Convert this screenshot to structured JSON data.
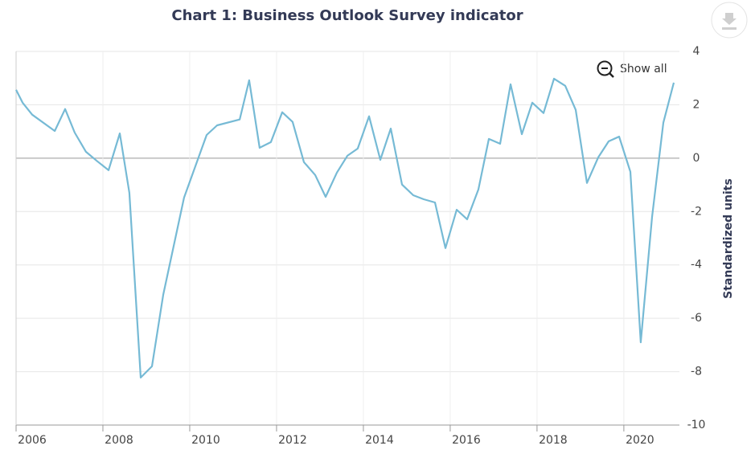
{
  "chart_data": {
    "type": "line",
    "title": "Chart 1: Business Outlook Survey indicator",
    "y_label": "Standardized units",
    "color": "#76bad5",
    "x": [
      2006.0,
      2006.15,
      2006.37,
      2006.89,
      2007.13,
      2007.35,
      2007.61,
      2007.85,
      2008.13,
      2008.39,
      2008.61,
      2008.87,
      2009.13,
      2009.39,
      2009.87,
      2010.39,
      2010.63,
      2011.15,
      2011.37,
      2011.61,
      2011.87,
      2012.13,
      2012.37,
      2012.63,
      2012.89,
      2013.13,
      2013.39,
      2013.63,
      2013.87,
      2014.13,
      2014.39,
      2014.63,
      2014.89,
      2015.15,
      2015.39,
      2015.65,
      2015.89,
      2016.15,
      2016.39,
      2016.65,
      2016.89,
      2017.15,
      2017.39,
      2017.65,
      2017.89,
      2018.15,
      2018.39,
      2018.65,
      2018.89,
      2019.15,
      2019.41,
      2019.65,
      2019.89,
      2020.15,
      2020.39,
      2020.65,
      2020.91,
      2021.15
    ],
    "values": [
      2.56,
      2.08,
      1.63,
      1.02,
      1.84,
      0.96,
      0.24,
      -0.09,
      -0.45,
      0.93,
      -1.3,
      -8.22,
      -7.8,
      -5.12,
      -1.48,
      0.87,
      1.23,
      1.45,
      2.92,
      0.39,
      0.6,
      1.72,
      1.36,
      -0.15,
      -0.63,
      -1.45,
      -0.54,
      0.09,
      0.36,
      1.57,
      -0.06,
      1.11,
      -0.99,
      -1.39,
      -1.54,
      -1.66,
      -3.37,
      -1.93,
      -2.29,
      -1.17,
      0.72,
      0.54,
      2.77,
      0.9,
      2.08,
      1.69,
      2.98,
      2.71,
      1.81,
      -0.93,
      0.03,
      0.63,
      0.81,
      -0.51,
      -6.9,
      -2.2,
      1.33,
      2.83
    ],
    "xlim": [
      2006,
      2021.28
    ],
    "xticks": [
      2006,
      2008,
      2010,
      2012,
      2014,
      2016,
      2018,
      2020
    ],
    "ylim": [
      -10,
      4
    ],
    "yticks": [
      4,
      2,
      0,
      -2,
      -4,
      -6,
      -8,
      -10
    ],
    "grid": true
  },
  "ui": {
    "reset_zoom": "Show all"
  }
}
